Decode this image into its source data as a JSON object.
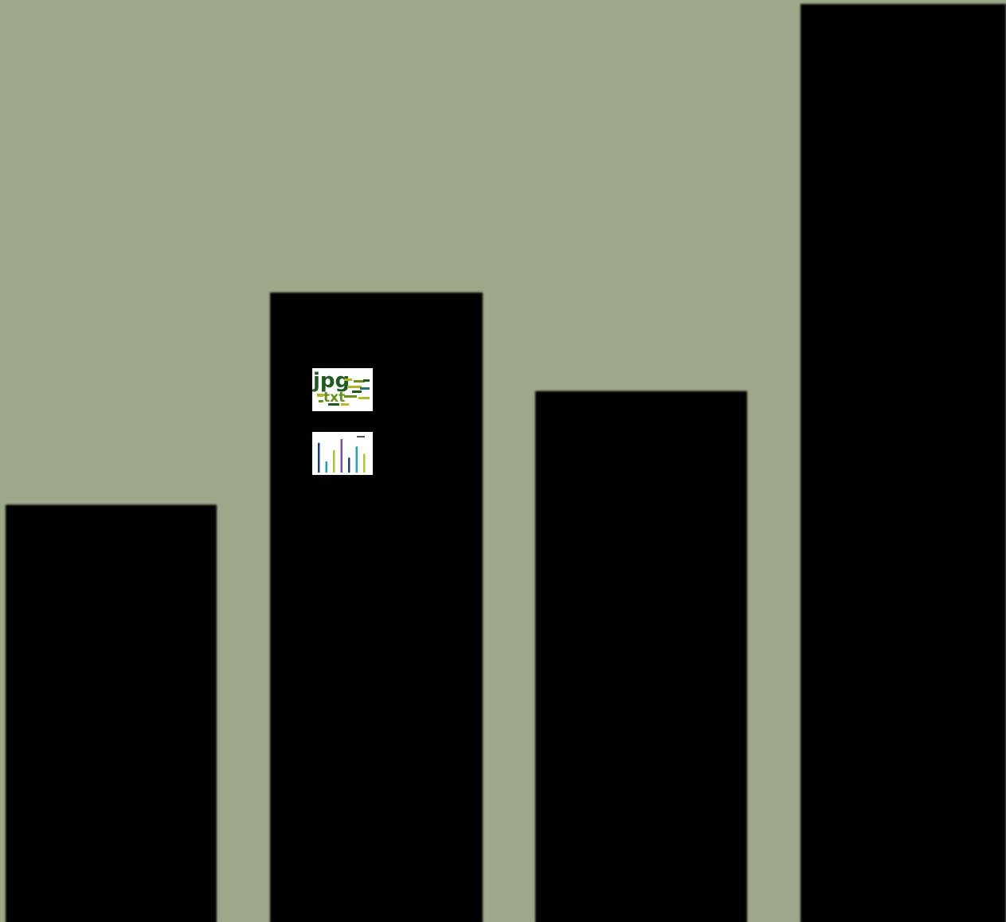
{
  "theme": {
    "background": "#9da78a",
    "bar_color": "#000000",
    "thumb_bg": "#ffffff",
    "wordcloud_colors": [
      "#1f5b1f",
      "#6b8f1e",
      "#b3b829",
      "#2e6f6f"
    ],
    "mini_bar_colors": [
      "#1f3c88",
      "#2aa0a8",
      "#b7c23a",
      "#7a4fa0"
    ]
  },
  "chart_data": {
    "type": "bar",
    "categories": [
      "",
      "",
      "",
      ""
    ],
    "values": [
      525,
      792,
      668,
      1155
    ],
    "ylim": [
      0,
      1160
    ],
    "grid": false,
    "legend": "none",
    "title": "",
    "xlabel": "",
    "ylabel": ""
  },
  "thumbnails": {
    "wordcloud": {
      "words": [
        "jpg",
        "txt"
      ]
    },
    "mini_bar_chart": {
      "values": [
        8,
        3,
        6,
        9,
        4,
        7,
        5
      ]
    }
  }
}
